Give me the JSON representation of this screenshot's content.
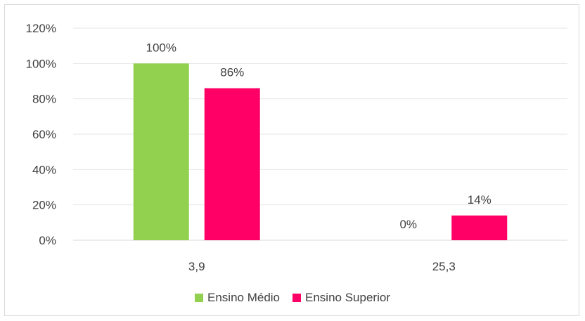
{
  "chart_data": {
    "type": "bar",
    "categories": [
      "3,9",
      "25,3"
    ],
    "series": [
      {
        "name": "Ensino Médio",
        "values": [
          100,
          0
        ],
        "labels": [
          "100%",
          "0%"
        ],
        "color": "#92d050"
      },
      {
        "name": "Ensino Superior",
        "values": [
          86,
          14
        ],
        "labels": [
          "86%",
          "14%"
        ],
        "color": "#ff0066"
      }
    ],
    "ylim": [
      0,
      120
    ],
    "yticks": [
      "0%",
      "20%",
      "40%",
      "60%",
      "80%",
      "100%",
      "120%"
    ],
    "grid": true,
    "legend_position": "bottom",
    "title": "",
    "xlabel": "",
    "ylabel": ""
  }
}
